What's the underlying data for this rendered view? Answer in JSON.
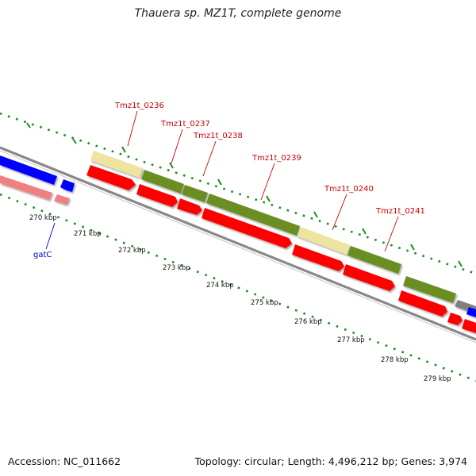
{
  "title": "Thauera sp. MZ1T, complete genome",
  "footer": {
    "accession": "Accession: NC_011662",
    "stats": "Topology: circular; Length: 4,496,212 bp; Genes: 3,974"
  },
  "kbp_labels": [
    "270 kbp",
    "271 kbp",
    "272 kbp",
    "273 kbp",
    "274 kbp",
    "275 kbp",
    "276 kbp",
    "277 kbp",
    "278 kbp",
    "279 kbp"
  ],
  "gene_labels": {
    "gatC": "gatC",
    "Tmz1t_0236": "Tmz1t_0236",
    "Tmz1t_0237": "Tmz1t_0237",
    "Tmz1t_0238": "Tmz1t_0238",
    "Tmz1t_0239": "Tmz1t_0239",
    "Tmz1t_0240": "Tmz1t_0240",
    "Tmz1t_0241": "Tmz1t_0241"
  },
  "colors": {
    "gene_cds": "#ff0000",
    "gene_rrna_pink": "#f08080",
    "gene_blue": "#0000ff",
    "cog_pale_yellow": "#eee4a0",
    "cog_olive": "#6b8e23",
    "cog_gray": "#808080",
    "ticks": "#228b22",
    "backbone": "#888888",
    "label_red": "#cc0000",
    "label_blue": "#0000cc"
  }
}
